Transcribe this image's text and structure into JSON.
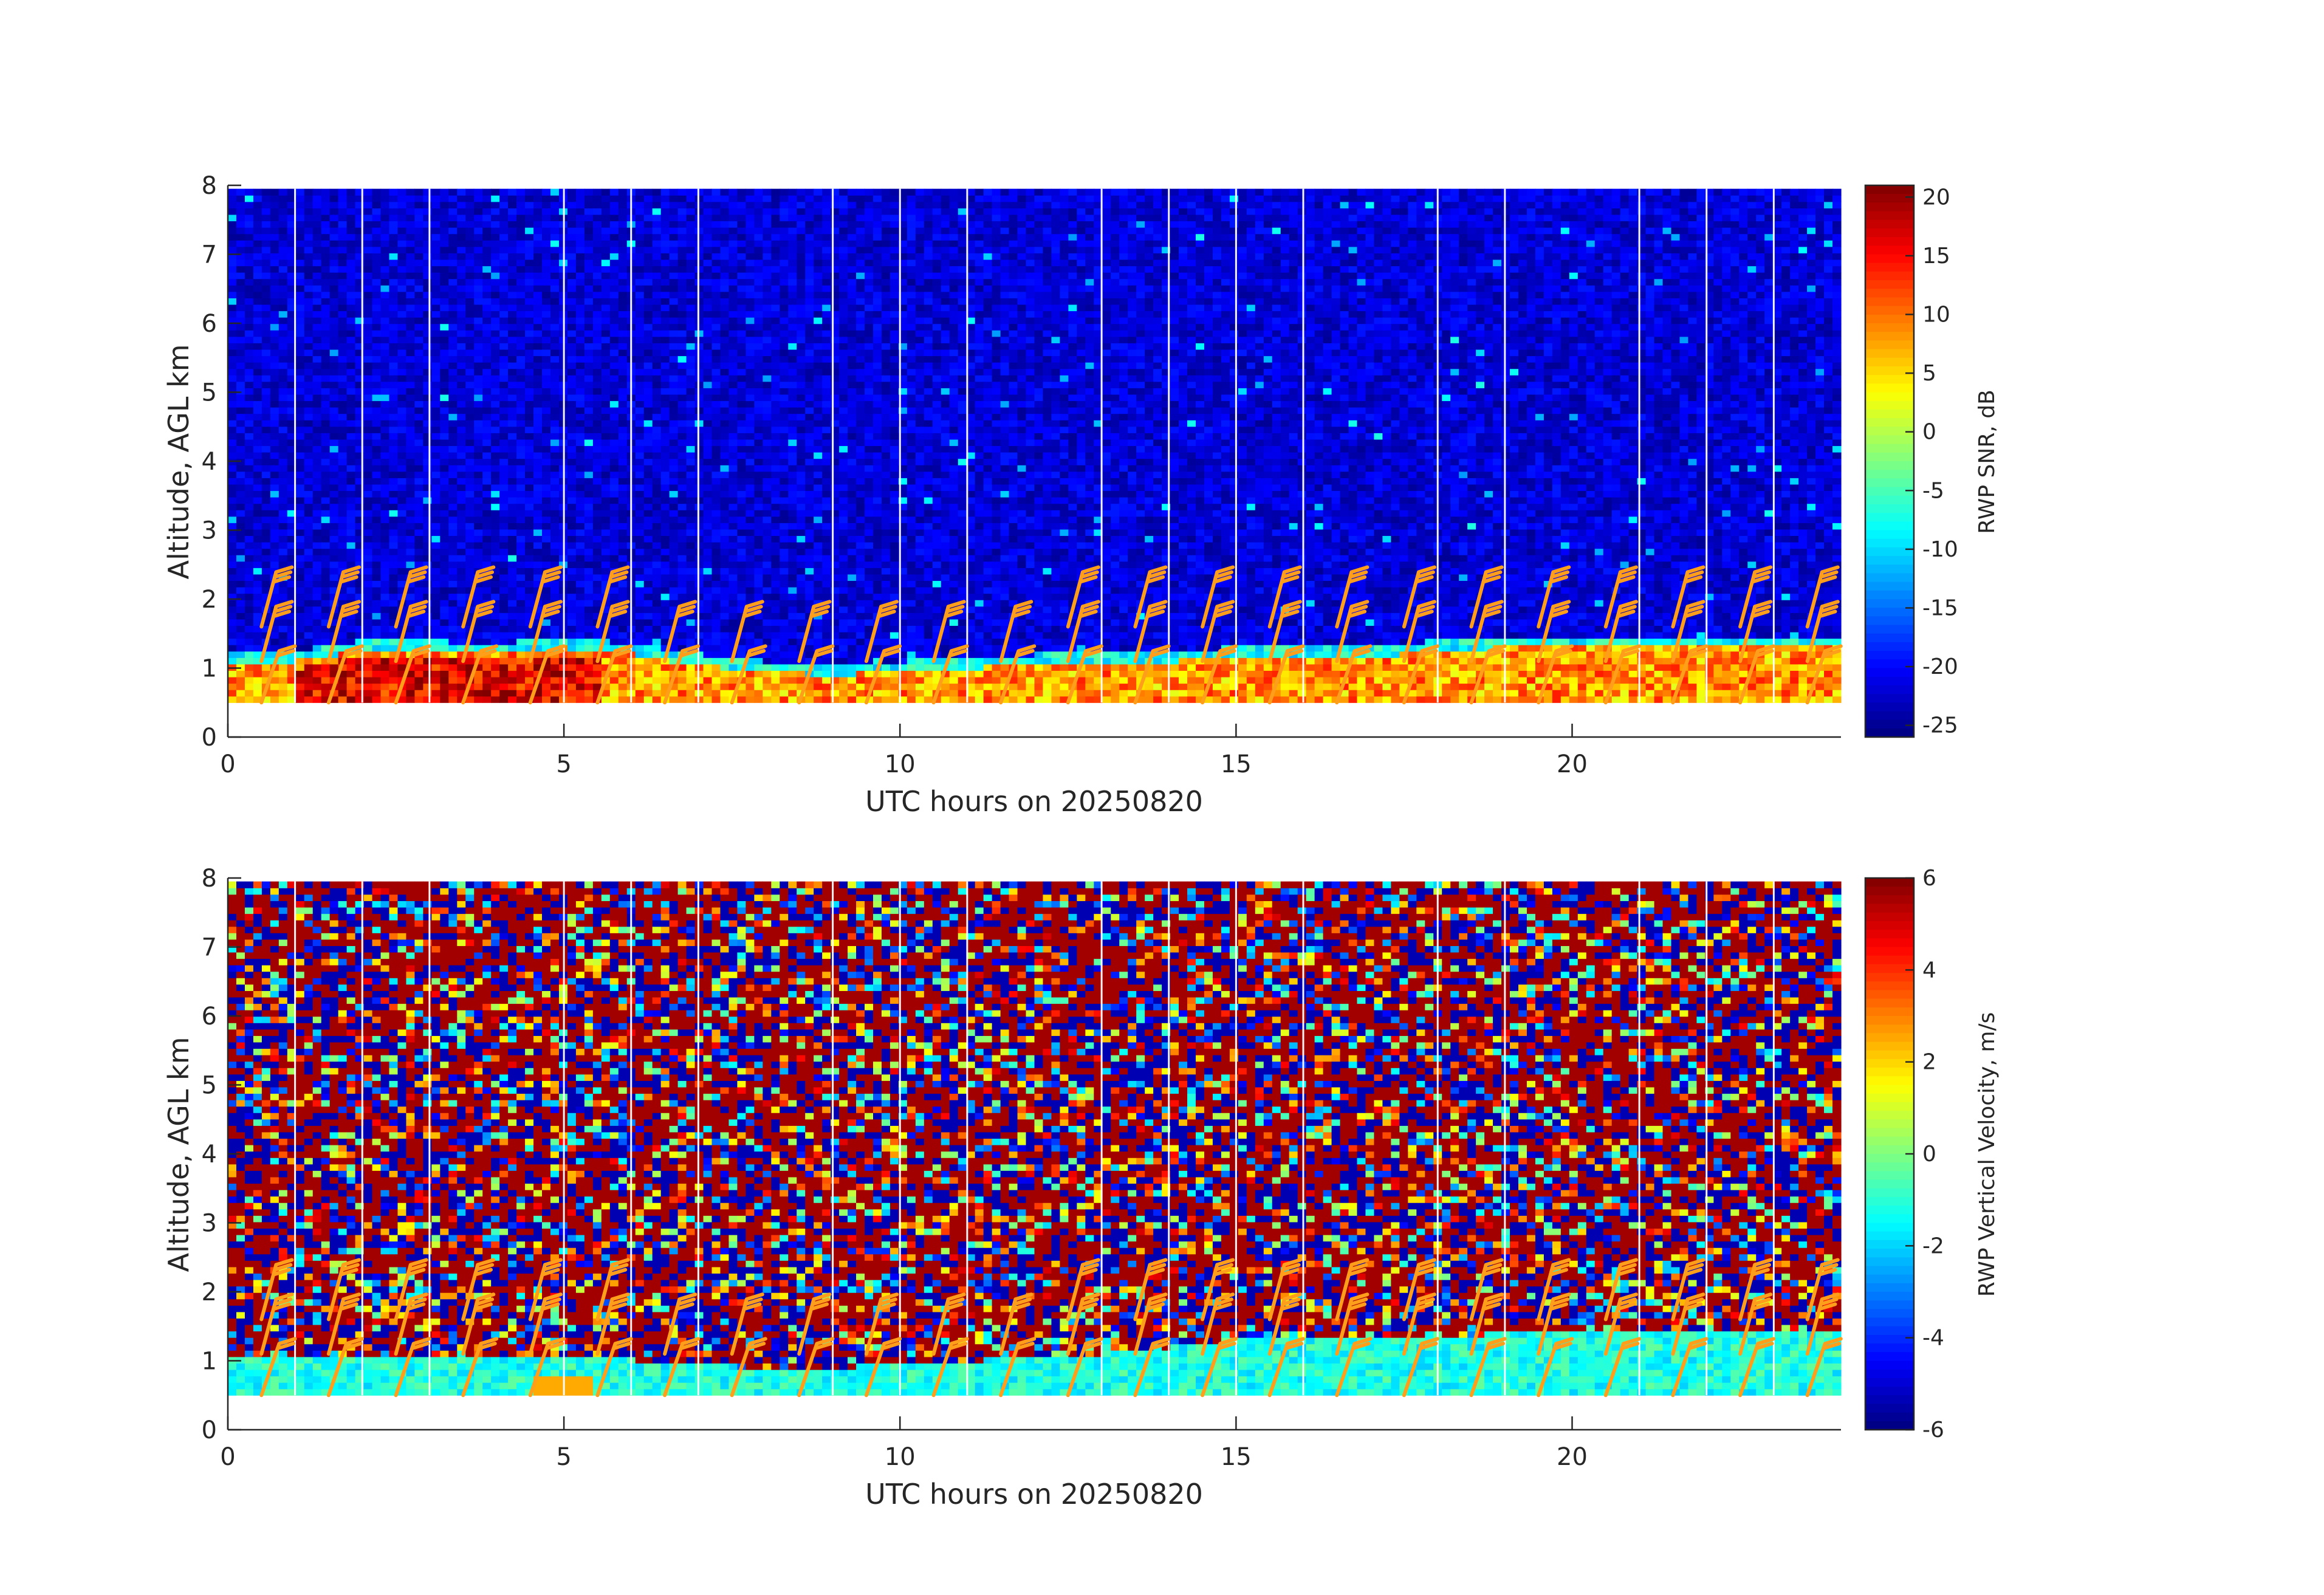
{
  "chart_data": [
    {
      "type": "heatmap",
      "id": "snr",
      "xlabel": "UTC hours on 20250820",
      "ylabel": "Altitude, AGL km",
      "xlim": [
        0,
        24
      ],
      "ylim": [
        0,
        8
      ],
      "x_ticks": [
        0,
        5,
        10,
        15,
        20
      ],
      "y_ticks": [
        0,
        1,
        2,
        3,
        4,
        5,
        6,
        7,
        8
      ],
      "data_altitude_range_km": [
        0.5,
        7.95
      ],
      "colormap": "jet",
      "colorbar": {
        "label": "RWP SNR, dB",
        "range": [
          -26,
          21
        ],
        "ticks": [
          20,
          15,
          10,
          5,
          0,
          -5,
          -10,
          -15,
          -20,
          -25
        ]
      },
      "data_gap_hours": [
        1,
        2,
        3,
        5,
        6,
        7,
        9,
        10,
        11,
        13,
        14,
        15,
        16,
        18,
        19,
        21,
        22,
        23
      ],
      "field_description_levels": {
        "boundary_layer_top_km": [
          1.1,
          1.1,
          1.25,
          1.25,
          1.2,
          1.3,
          1.2,
          1.05,
          0.95,
          0.9,
          0.95,
          1.0,
          1.05,
          1.05,
          1.1,
          1.15,
          1.15,
          1.15,
          1.25,
          1.3,
          1.3,
          1.3,
          1.3,
          1.3,
          1.3
        ],
        "background_snr_db": -22,
        "boundary_layer_snr_db": 8
      },
      "wind_barbs": {
        "x_hours": [
          0.5,
          1.5,
          2.5,
          3.5,
          4.5,
          5.5,
          6.5,
          7.5,
          8.5,
          9.5,
          10.5,
          11.5,
          12.5,
          13.5,
          14.5,
          15.5,
          16.5,
          17.5,
          18.5,
          19.5,
          20.5,
          21.5,
          22.5,
          23.5
        ],
        "levels_km": [
          0.5,
          1.1,
          1.6
        ]
      }
    },
    {
      "type": "heatmap",
      "id": "w",
      "xlabel": "UTC hours on 20250820",
      "ylabel": "Altitude, AGL km",
      "xlim": [
        0,
        24
      ],
      "ylim": [
        0,
        8
      ],
      "x_ticks": [
        0,
        5,
        10,
        15,
        20
      ],
      "y_ticks": [
        0,
        1,
        2,
        3,
        4,
        5,
        6,
        7,
        8
      ],
      "data_altitude_range_km": [
        0.5,
        7.95
      ],
      "colormap": "jet",
      "colorbar": {
        "label": "RWP Vertical Velocity, m/s",
        "range": [
          -6,
          6
        ],
        "ticks": [
          6,
          4,
          2,
          0,
          -2,
          -4,
          -6
        ]
      },
      "data_gap_hours": [
        1,
        2,
        3,
        5,
        6,
        7,
        9,
        10,
        11,
        13,
        14,
        15,
        16,
        18,
        19,
        21,
        22,
        23
      ],
      "field_description_levels": {
        "low_layer_top_km": [
          1.1,
          1.1,
          1.1,
          1.1,
          1.1,
          1.1,
          1.0,
          0.95,
          0.9,
          0.9,
          0.95,
          1.0,
          1.05,
          1.1,
          1.2,
          1.3,
          1.35,
          1.35,
          1.35,
          1.4,
          1.4,
          1.4,
          1.4,
          1.4,
          1.4
        ],
        "low_layer_velocity_ms": -1.2,
        "noise_velocity_ms": 0
      },
      "wind_barbs": {
        "x_hours": [
          0.5,
          1.5,
          2.5,
          3.5,
          4.5,
          5.5,
          6.5,
          7.5,
          8.5,
          9.5,
          10.5,
          11.5,
          12.5,
          13.5,
          14.5,
          15.5,
          16.5,
          17.5,
          18.5,
          19.5,
          20.5,
          21.5,
          22.5,
          23.5
        ],
        "levels_km": [
          0.5,
          1.1,
          1.6
        ]
      }
    }
  ],
  "colors": {
    "wind_barb": "#ff9e1a",
    "axis": "#262626",
    "gap": "#ffffff"
  }
}
